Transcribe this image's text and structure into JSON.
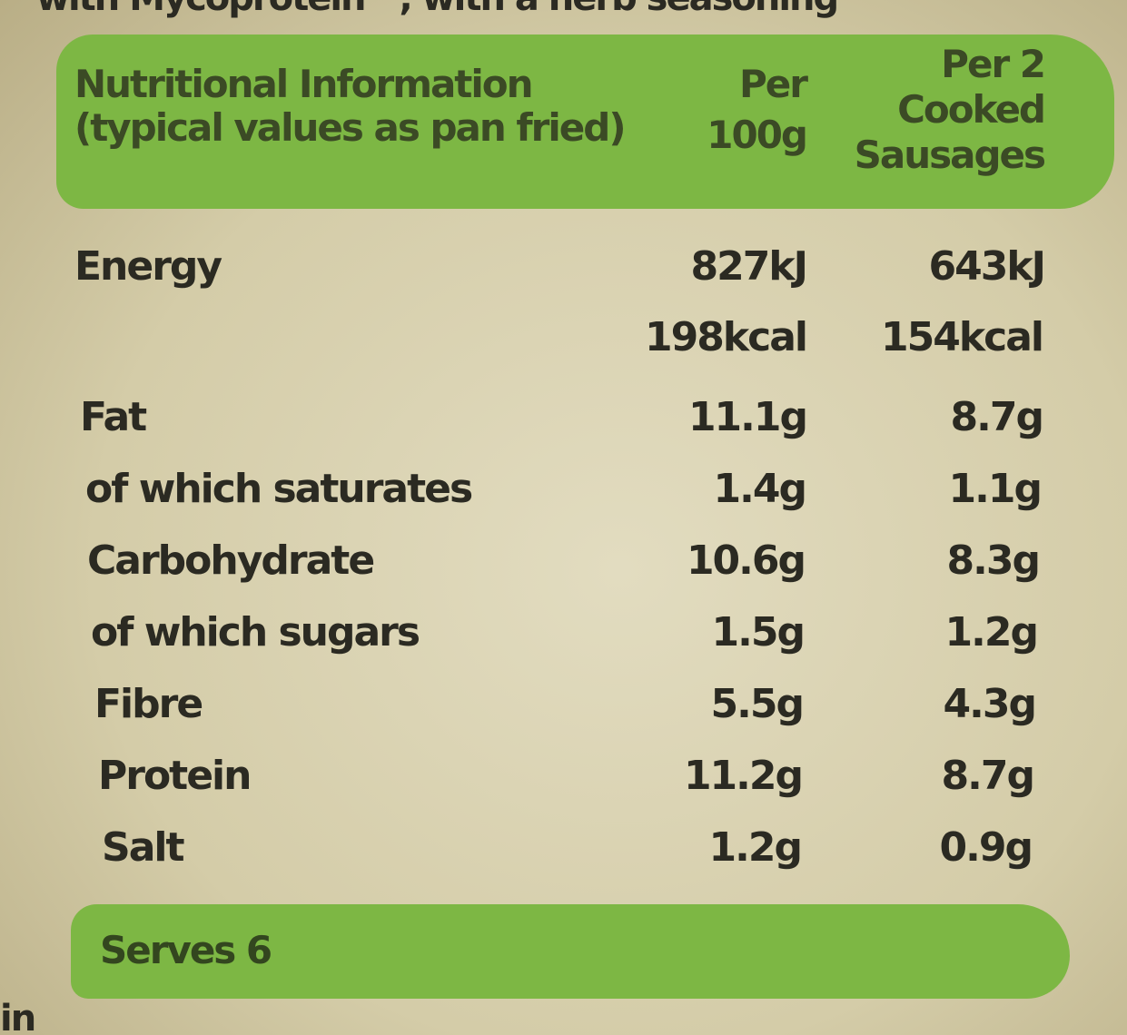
{
  "top_fragment": "with Mycoprotein™, with a herb seasoning",
  "header": {
    "title_lines": [
      "Nutritional Information",
      "(typical values as pan fried)"
    ],
    "col_per_100g": [
      "Per",
      "100g"
    ],
    "col_per_serving": [
      "Per 2",
      "Cooked",
      "Sausages"
    ]
  },
  "energy": {
    "label": "Energy",
    "kj": [
      "827kJ",
      "643kJ"
    ],
    "kcal": [
      "198kcal",
      "154kcal"
    ]
  },
  "rows": [
    [
      "Fat",
      "11.1g",
      "8.7g"
    ],
    [
      "of which saturates",
      "1.4g",
      "1.1g"
    ],
    [
      "Carbohydrate",
      "10.6g",
      "8.3g"
    ],
    [
      "of which sugars",
      "1.5g",
      "1.2g"
    ],
    [
      "Fibre",
      "5.5g",
      "4.3g"
    ],
    [
      "Protein",
      "11.2g",
      "8.7g"
    ],
    [
      "Salt",
      "1.2g",
      "0.9g"
    ]
  ],
  "footer": {
    "serves": "Serves 6",
    "bottom_fragment": "in"
  }
}
